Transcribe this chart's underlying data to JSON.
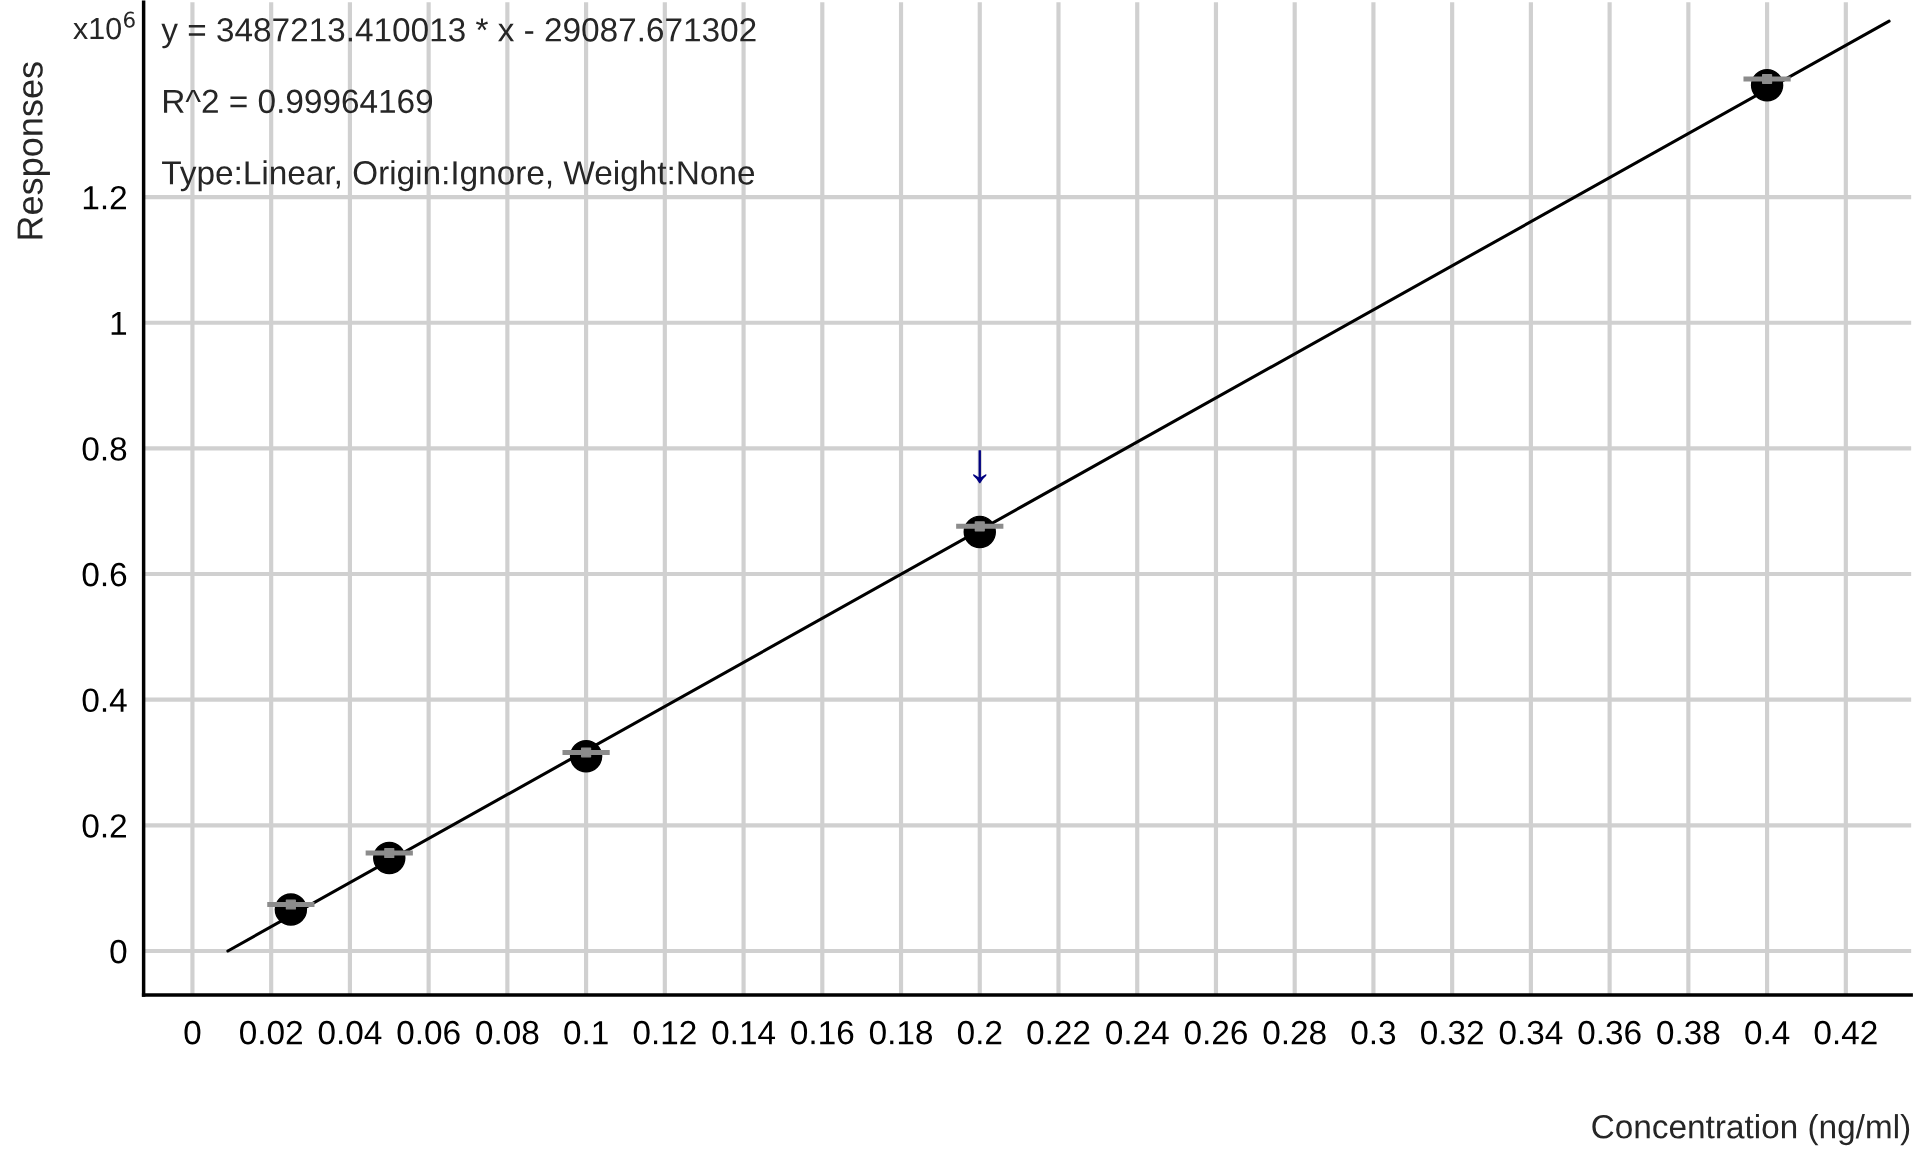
{
  "chart_data": {
    "type": "scatter",
    "ylabel": "Responses",
    "xlabel": "Concentration (ng/ml)",
    "annotations": [
      "x10$^{6}$",
      "y = 3487213.410013 * x - 29087.671302",
      "R^2 = 0.99964169",
      "Type:Linear, Origin:Ignore, Weight:None",
      {
        "text": "↓",
        "x": 0.2,
        "y": 0.667
      }
    ],
    "series": [
      {
        "type": "line",
        "color": "#000000",
        "x": [
          0.009,
          0.431
        ],
        "values": [
          0.0,
          1.48
        ],
        "marker": "none"
      },
      {
        "color": "#000000",
        "x": [
          0.025,
          0.05,
          0.1,
          0.2,
          0.4
        ],
        "values": [
          0.066,
          0.148,
          0.31,
          0.667,
          1.378
        ],
        "marker": "circle"
      },
      {
        "type": "scatter",
        "color": "#8c8c8c",
        "x": [
          0.025,
          0.05,
          0.1,
          0.2,
          0.4
        ],
        "values": [
          0.074,
          0.156,
          0.316,
          0.676,
          1.388
        ],
        "marker": "square",
        "xerrors": [
          0.006,
          0.006,
          0.006,
          0.006,
          0.006
        ]
      }
    ],
    "xlim": [
      -0.0124,
      0.4366
    ],
    "ylim": [
      -0.07,
      1.51
    ],
    "xticks": [
      0,
      0.02,
      0.04,
      0.06,
      0.08,
      0.1,
      0.12,
      0.14,
      0.16,
      0.18,
      0.2,
      0.22,
      0.24,
      0.26,
      0.28,
      0.3,
      0.32,
      0.34,
      0.36,
      0.38,
      0.4,
      0.42
    ],
    "yticks": [
      0,
      0.2,
      0.4,
      0.6,
      0.8,
      1,
      1.2
    ],
    "grid": true
  }
}
